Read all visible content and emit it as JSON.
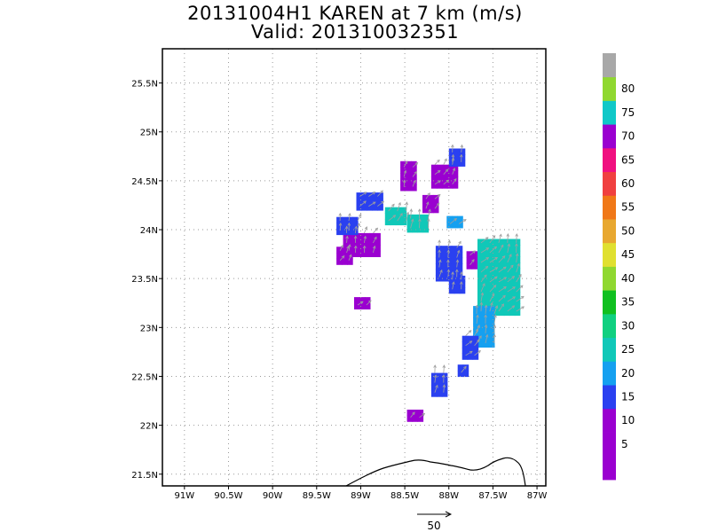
{
  "title": {
    "line1": "20131004H1 KAREN at 7 km (m/s)",
    "line2": "Valid: 201310032351"
  },
  "colors": {
    "gray": "#a0a0a0",
    "background": "#ffffff"
  },
  "chart_data": {
    "type": "heatmap",
    "xlabel": "",
    "ylabel": "",
    "xlim": [
      -91.25,
      -86.9
    ],
    "ylim": [
      21.38,
      25.85
    ],
    "grid": true,
    "x_ticks": [
      {
        "value": -91.0,
        "label": "91W"
      },
      {
        "value": -90.5,
        "label": "90.5W"
      },
      {
        "value": -90.0,
        "label": "90W"
      },
      {
        "value": -89.5,
        "label": "89.5W"
      },
      {
        "value": -89.0,
        "label": "89W"
      },
      {
        "value": -88.5,
        "label": "88.5W"
      },
      {
        "value": -88.0,
        "label": "88W"
      },
      {
        "value": -87.5,
        "label": "87.5W"
      },
      {
        "value": -87.0,
        "label": "87W"
      }
    ],
    "y_ticks": [
      {
        "value": 21.5,
        "label": "21.5N"
      },
      {
        "value": 22.0,
        "label": "22N"
      },
      {
        "value": 22.5,
        "label": "22.5N"
      },
      {
        "value": 23.0,
        "label": "23N"
      },
      {
        "value": 23.5,
        "label": "23.5N"
      },
      {
        "value": 24.0,
        "label": "24N"
      },
      {
        "value": 24.5,
        "label": "24.5N"
      },
      {
        "value": 25.0,
        "label": "25N"
      },
      {
        "value": 25.5,
        "label": "25.5N"
      }
    ],
    "colorbar": {
      "bins": [
        {
          "color": "#9a00d0"
        },
        {
          "color": "#9a00d0",
          "label": "5"
        },
        {
          "color": "#9a00d0",
          "label": "10"
        },
        {
          "color": "#2a40f0",
          "label": "15"
        },
        {
          "color": "#15a0f0",
          "label": "20"
        },
        {
          "color": "#10c8b8",
          "label": "25"
        },
        {
          "color": "#10d080",
          "label": "30"
        },
        {
          "color": "#10c020",
          "label": "35"
        },
        {
          "color": "#90d830",
          "label": "40"
        },
        {
          "color": "#e0e030",
          "label": "45"
        },
        {
          "color": "#e8a830",
          "label": "50"
        },
        {
          "color": "#f07818",
          "label": "55"
        },
        {
          "color": "#f04040",
          "label": "60"
        },
        {
          "color": "#f01080",
          "label": "65"
        },
        {
          "color": "#9a00d0",
          "label": "70"
        },
        {
          "color": "#10c8c8",
          "label": "75"
        },
        {
          "color": "#90d830",
          "label": "80"
        },
        {
          "color": "#a8a8a8"
        }
      ]
    },
    "cell_size_deg": [
      0.06,
      0.06
    ],
    "field": [
      {
        "lon": -89.2,
        "lat": 23.72,
        "w": 0.15,
        "h": 0.15,
        "value": 5
      },
      {
        "lon": -89.0,
        "lat": 23.25,
        "w": 0.15,
        "h": 0.12,
        "value": 5
      },
      {
        "lon": -89.0,
        "lat": 23.85,
        "w": 0.4,
        "h": 0.25,
        "value": 8
      },
      {
        "lon": -89.15,
        "lat": 24.05,
        "w": 0.25,
        "h": 0.2,
        "value": 12
      },
      {
        "lon": -88.9,
        "lat": 24.3,
        "w": 0.3,
        "h": 0.2,
        "value": 14
      },
      {
        "lon": -88.6,
        "lat": 24.15,
        "w": 0.25,
        "h": 0.2,
        "value": 20
      },
      {
        "lon": -88.35,
        "lat": 24.05,
        "w": 0.25,
        "h": 0.15,
        "value": 22
      },
      {
        "lon": -88.45,
        "lat": 24.55,
        "w": 0.2,
        "h": 0.3,
        "value": 7
      },
      {
        "lon": -88.05,
        "lat": 24.55,
        "w": 0.3,
        "h": 0.25,
        "value": 7
      },
      {
        "lon": -87.9,
        "lat": 24.75,
        "w": 0.2,
        "h": 0.2,
        "value": 12
      },
      {
        "lon": -88.2,
        "lat": 24.25,
        "w": 0.2,
        "h": 0.15,
        "value": 9
      },
      {
        "lon": -87.95,
        "lat": 24.08,
        "w": 0.15,
        "h": 0.12,
        "value": 16
      },
      {
        "lon": -88.0,
        "lat": 23.65,
        "w": 0.3,
        "h": 0.35,
        "value": 12
      },
      {
        "lon": -87.9,
        "lat": 23.45,
        "w": 0.2,
        "h": 0.2,
        "value": 12
      },
      {
        "lon": -87.75,
        "lat": 23.7,
        "w": 0.1,
        "h": 0.2,
        "value": 7
      },
      {
        "lon": -87.45,
        "lat": 23.5,
        "w": 0.45,
        "h": 0.75,
        "value": 20
      },
      {
        "lon": -87.6,
        "lat": 23.0,
        "w": 0.25,
        "h": 0.4,
        "value": 18
      },
      {
        "lon": -87.75,
        "lat": 22.8,
        "w": 0.2,
        "h": 0.25,
        "value": 13
      },
      {
        "lon": -87.85,
        "lat": 22.55,
        "w": 0.1,
        "h": 0.1,
        "value": 13
      },
      {
        "lon": -88.1,
        "lat": 22.42,
        "w": 0.2,
        "h": 0.25,
        "value": 13
      },
      {
        "lon": -88.4,
        "lat": 22.1,
        "w": 0.15,
        "h": 0.12,
        "value": 7
      }
    ],
    "vector_reference": {
      "value": 50,
      "label": "50"
    }
  }
}
